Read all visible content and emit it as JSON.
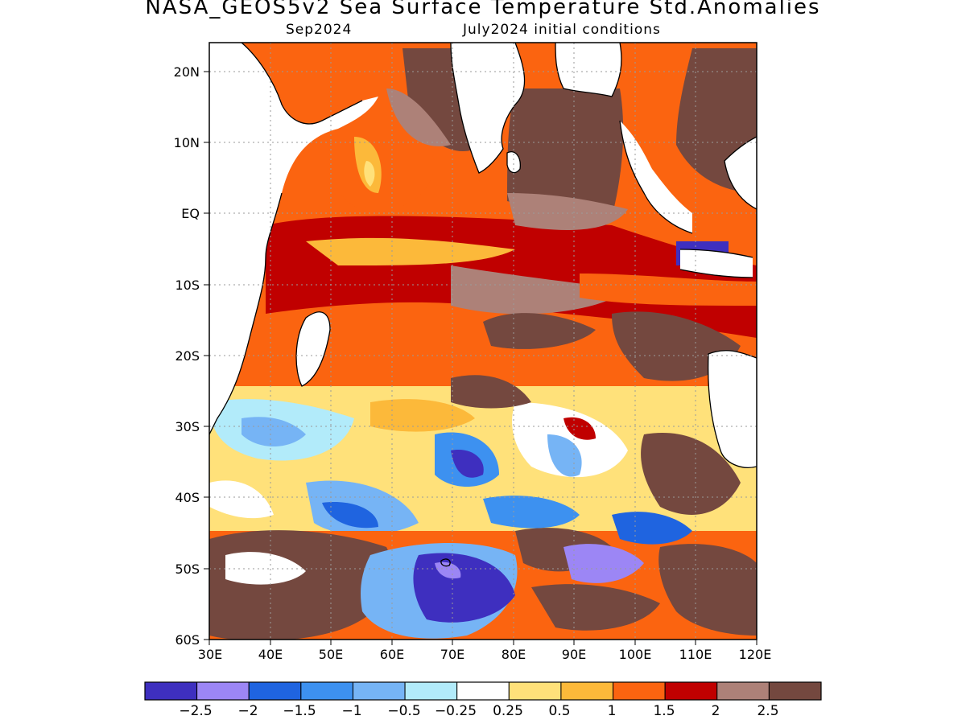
{
  "header": {
    "title": "NASA_GEOS5v2 Sea Surface Temperature Std.Anomalies",
    "valid_month": "Sep2024",
    "init_conditions": "July2024 initial conditions"
  },
  "map": {
    "region": "Indian Ocean",
    "lon_range": [
      30,
      120
    ],
    "lat_range": [
      -60,
      24
    ],
    "land_color": "#ffffff",
    "coastline_color": "#000000"
  },
  "axes": {
    "lat_labels": [
      "20N",
      "10N",
      "EQ",
      "10S",
      "20S",
      "30S",
      "40S",
      "50S",
      "60S"
    ],
    "lon_labels": [
      "30E",
      "40E",
      "50E",
      "60E",
      "70E",
      "80E",
      "90E",
      "100E",
      "110E",
      "120E"
    ]
  },
  "colorbar": {
    "colors": [
      "#3e2fbf",
      "#9c86f5",
      "#1f64e0",
      "#3d91f0",
      "#76b4f5",
      "#b2ebfa",
      "#ffffff",
      "#ffe17a",
      "#fcb93a",
      "#fb6410",
      "#c00000",
      "#ad8178",
      "#74483f"
    ],
    "labels": [
      "−2.5",
      "−2",
      "−1.5",
      "−1",
      "−0.5",
      "−0.25",
      "0.25",
      "0.5",
      "1",
      "1.5",
      "2",
      "2.5"
    ]
  }
}
